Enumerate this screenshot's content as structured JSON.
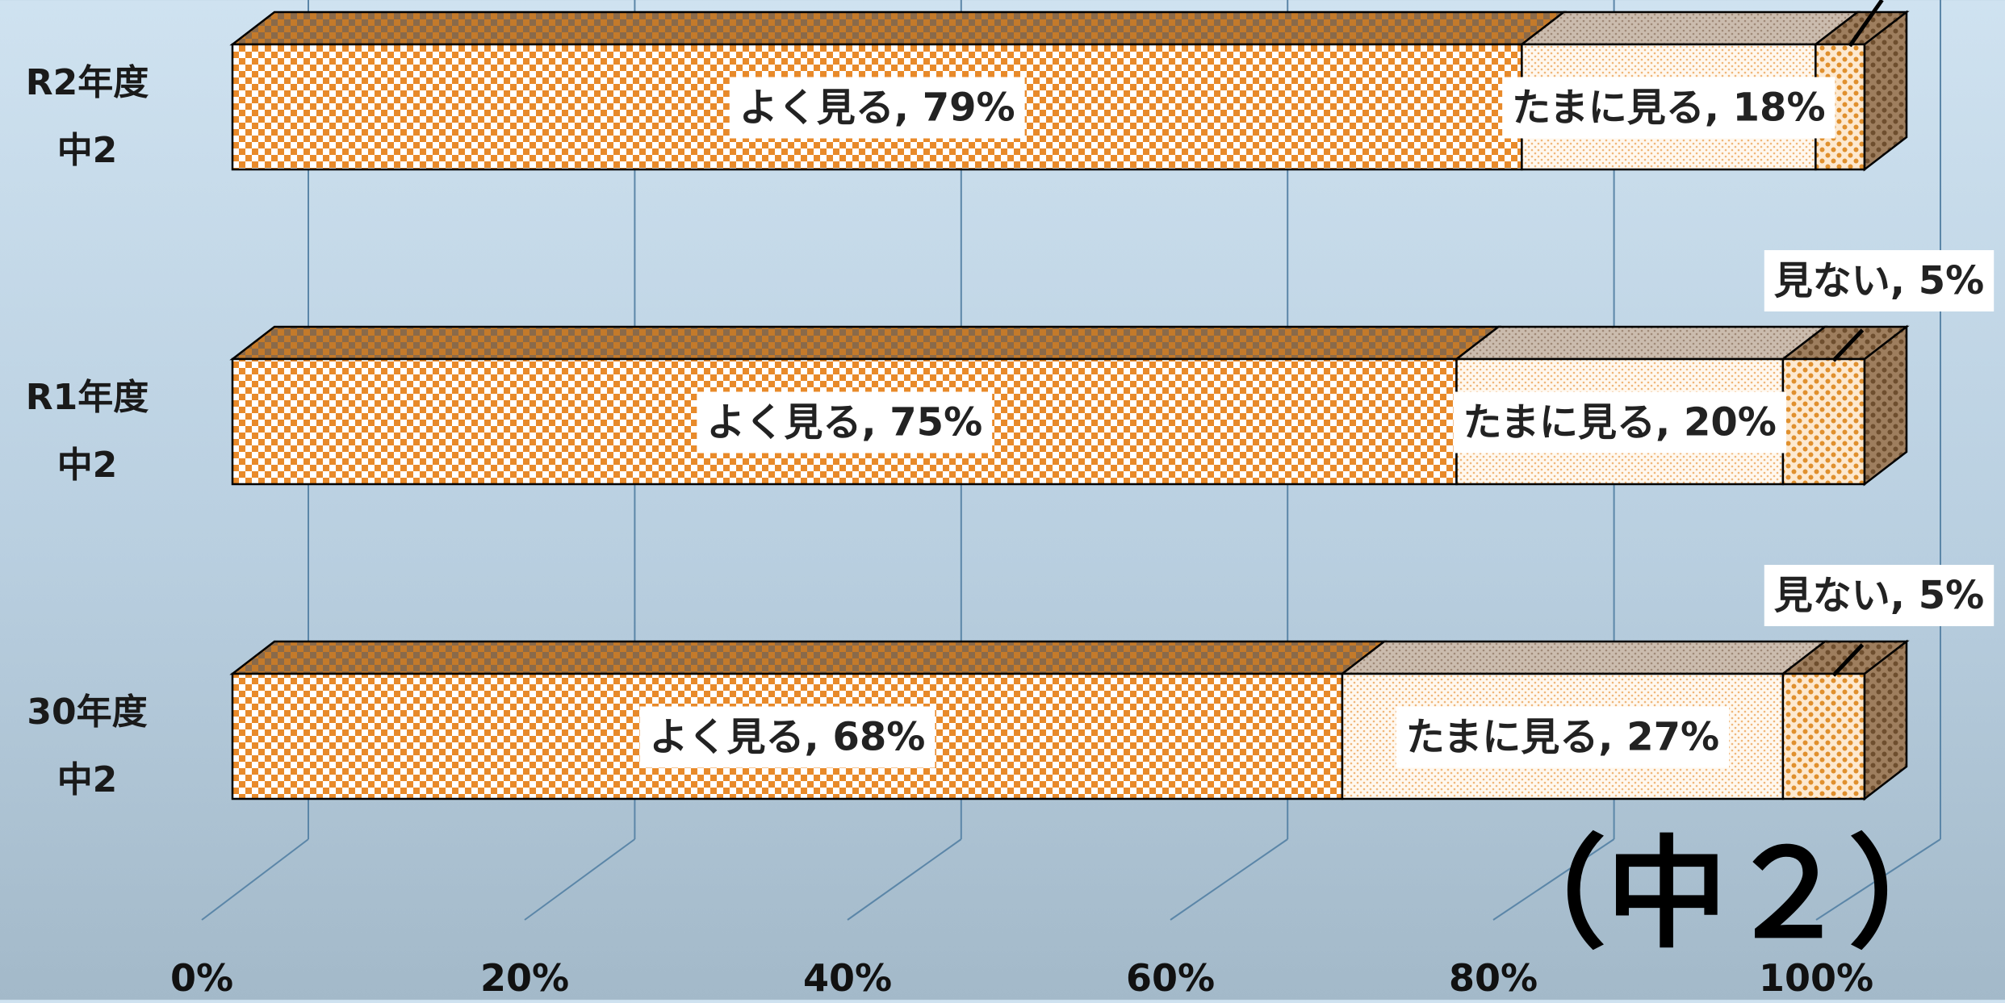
{
  "chart_data": {
    "type": "bar",
    "orientation": "horizontal",
    "stacked": "percent",
    "style": "3d",
    "categories": [
      "R2年度\n中2",
      "R1年度\n中2",
      "30年度\n中2"
    ],
    "series": [
      {
        "name": "よく見る",
        "values": [
          79,
          75,
          68
        ]
      },
      {
        "name": "たまに見る",
        "values": [
          18,
          20,
          27
        ]
      },
      {
        "name": "見ない",
        "values": [
          3,
          5,
          5
        ]
      }
    ],
    "data_labels": [
      [
        "よく見る, 79%",
        "たまに見る, 18%",
        ""
      ],
      [
        "よく見る, 75%",
        "たまに見る, 20%",
        "見ない, 5%"
      ],
      [
        "よく見る, 68%",
        "たまに見る, 27%",
        "見ない, 5%"
      ]
    ],
    "x_ticks": [
      "0%",
      "20%",
      "40%",
      "60%",
      "80%",
      "100%"
    ],
    "xlim": [
      0,
      100
    ],
    "grid": true,
    "annotation": "（中２）",
    "colors": {
      "frequent": "#e88a2a",
      "sometimes": "#f4c89a",
      "never": "#e0902e",
      "outline": "#000000",
      "gridline": "#5b86a8",
      "label_bg": "#ffffff"
    }
  }
}
